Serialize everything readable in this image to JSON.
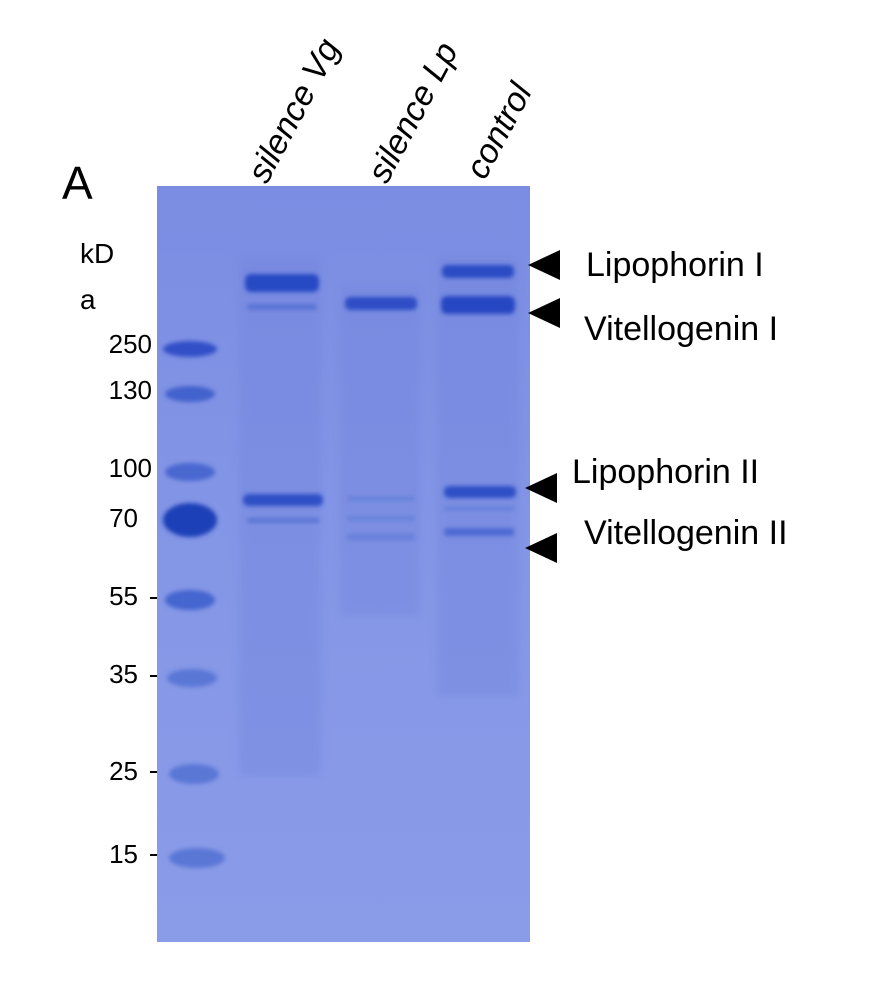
{
  "figure": {
    "panel_letter": "A",
    "lane_labels": [
      "silence Vg",
      "silence Lp",
      "control"
    ],
    "unit_label_line1": "kD",
    "unit_label_line2": "a",
    "marker_labels": [
      "250",
      "130",
      "100",
      "70",
      "55",
      "35",
      "25",
      "15"
    ],
    "band_labels": [
      "Lipophorin I",
      "Vitellogenin I",
      "Lipophorin II",
      "Vitellogenin II"
    ]
  },
  "colors": {
    "gel_background": "#7f91e3",
    "gel_light": "#9aa8ec",
    "band_dark": "#2f4fc6",
    "band_medium": "#4a66d2"
  }
}
